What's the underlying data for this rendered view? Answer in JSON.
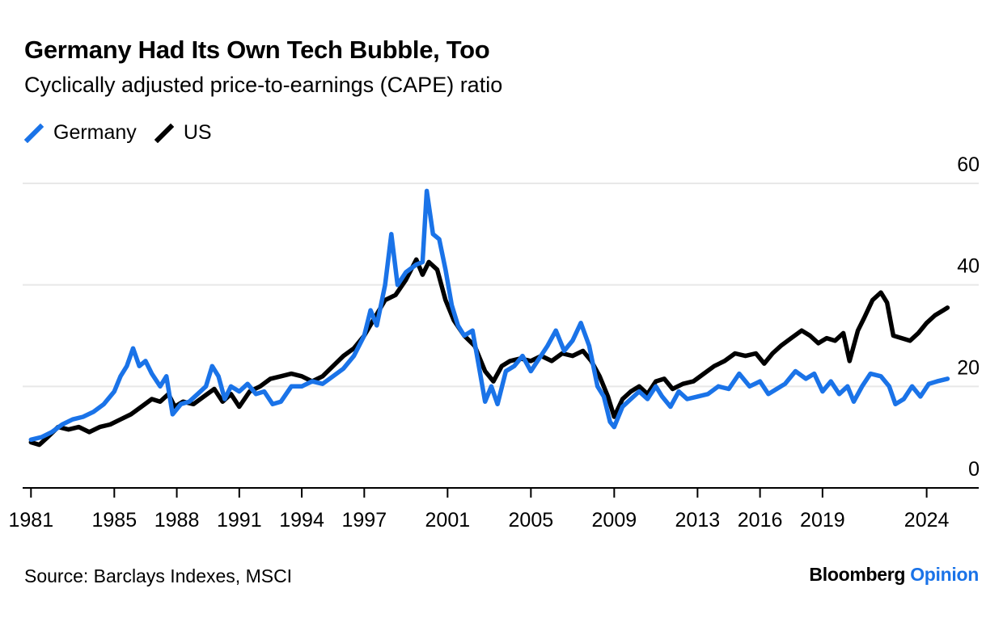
{
  "title": "Germany Had Its Own Tech Bubble, Too",
  "subtitle": "Cyclically adjusted price-to-earnings (CAPE) ratio",
  "source": "Source: Barclays Indexes, MSCI",
  "brand": {
    "name": "Bloomberg",
    "suffix": "Opinion",
    "suffix_color": "#1a73e8"
  },
  "colors": {
    "germany": "#1a73e8",
    "us": "#000000",
    "grid": "#e8e8e8",
    "axis": "#000000"
  },
  "chart_data": {
    "type": "line",
    "xlim": [
      1980.6,
      2026.5
    ],
    "ylim": [
      0,
      60
    ],
    "y_ticks": [
      0,
      20,
      40,
      60
    ],
    "x_ticks": [
      1981,
      1985,
      1988,
      1991,
      1994,
      1997,
      2001,
      2005,
      2009,
      2013,
      2016,
      2019,
      2024
    ],
    "x_tick_labels": [
      "1981",
      "1985",
      "1988",
      "1991",
      "1994",
      "1997",
      "2001",
      "2005",
      "2009",
      "2013",
      "2016",
      "2019",
      "2024"
    ],
    "y_axis_position": "right",
    "grid": "horizontal",
    "legend": "top-left",
    "series": [
      {
        "key": "germany",
        "name": "Germany",
        "color": "#1a73e8",
        "points": [
          [
            1981.0,
            9.5
          ],
          [
            1981.5,
            10.0
          ],
          [
            1982.0,
            11.0
          ],
          [
            1982.5,
            12.5
          ],
          [
            1983.0,
            13.5
          ],
          [
            1983.5,
            14.0
          ],
          [
            1984.0,
            15.0
          ],
          [
            1984.5,
            16.5
          ],
          [
            1985.0,
            19.0
          ],
          [
            1985.3,
            22.0
          ],
          [
            1985.6,
            24.0
          ],
          [
            1985.9,
            27.5
          ],
          [
            1986.2,
            24.0
          ],
          [
            1986.5,
            25.0
          ],
          [
            1986.8,
            22.5
          ],
          [
            1987.2,
            20.0
          ],
          [
            1987.5,
            22.0
          ],
          [
            1987.8,
            14.5
          ],
          [
            1988.2,
            16.5
          ],
          [
            1988.6,
            17.0
          ],
          [
            1989.0,
            18.5
          ],
          [
            1989.4,
            20.0
          ],
          [
            1989.7,
            24.0
          ],
          [
            1990.0,
            22.0
          ],
          [
            1990.3,
            17.5
          ],
          [
            1990.6,
            20.0
          ],
          [
            1991.0,
            19.0
          ],
          [
            1991.4,
            20.5
          ],
          [
            1991.8,
            18.5
          ],
          [
            1992.2,
            19.0
          ],
          [
            1992.6,
            16.5
          ],
          [
            1993.0,
            17.0
          ],
          [
            1993.5,
            20.0
          ],
          [
            1994.0,
            20.0
          ],
          [
            1994.5,
            21.0
          ],
          [
            1995.0,
            20.5
          ],
          [
            1995.5,
            22.0
          ],
          [
            1996.0,
            23.5
          ],
          [
            1996.5,
            26.0
          ],
          [
            1997.0,
            30.0
          ],
          [
            1997.3,
            35.0
          ],
          [
            1997.6,
            32.0
          ],
          [
            1998.0,
            40.0
          ],
          [
            1998.3,
            50.0
          ],
          [
            1998.6,
            40.0
          ],
          [
            1999.0,
            42.5
          ],
          [
            1999.5,
            44.0
          ],
          [
            1999.8,
            44.5
          ],
          [
            2000.0,
            58.5
          ],
          [
            2000.3,
            50.0
          ],
          [
            2000.6,
            49.0
          ],
          [
            2000.9,
            43.0
          ],
          [
            2001.2,
            36.0
          ],
          [
            2001.5,
            32.0
          ],
          [
            2001.8,
            30.0
          ],
          [
            2002.2,
            31.0
          ],
          [
            2002.5,
            24.0
          ],
          [
            2002.8,
            17.0
          ],
          [
            2003.1,
            20.0
          ],
          [
            2003.4,
            16.5
          ],
          [
            2003.8,
            23.0
          ],
          [
            2004.2,
            24.0
          ],
          [
            2004.6,
            26.0
          ],
          [
            2005.0,
            23.0
          ],
          [
            2005.4,
            25.5
          ],
          [
            2005.8,
            28.0
          ],
          [
            2006.2,
            31.0
          ],
          [
            2006.6,
            27.0
          ],
          [
            2007.0,
            29.0
          ],
          [
            2007.4,
            32.5
          ],
          [
            2007.8,
            28.0
          ],
          [
            2008.2,
            20.0
          ],
          [
            2008.5,
            18.0
          ],
          [
            2008.8,
            13.0
          ],
          [
            2009.0,
            12.0
          ],
          [
            2009.4,
            16.0
          ],
          [
            2009.8,
            17.5
          ],
          [
            2010.2,
            19.0
          ],
          [
            2010.6,
            17.5
          ],
          [
            2011.0,
            20.0
          ],
          [
            2011.3,
            18.0
          ],
          [
            2011.7,
            16.0
          ],
          [
            2012.1,
            19.0
          ],
          [
            2012.5,
            17.5
          ],
          [
            2013.0,
            18.0
          ],
          [
            2013.5,
            18.5
          ],
          [
            2014.0,
            20.0
          ],
          [
            2014.5,
            19.5
          ],
          [
            2015.0,
            22.5
          ],
          [
            2015.5,
            20.0
          ],
          [
            2016.0,
            21.0
          ],
          [
            2016.4,
            18.5
          ],
          [
            2016.8,
            19.5
          ],
          [
            2017.2,
            20.5
          ],
          [
            2017.7,
            23.0
          ],
          [
            2018.2,
            21.5
          ],
          [
            2018.6,
            22.5
          ],
          [
            2019.0,
            19.0
          ],
          [
            2019.4,
            21.0
          ],
          [
            2019.8,
            18.5
          ],
          [
            2020.2,
            20.0
          ],
          [
            2020.5,
            17.0
          ],
          [
            2020.9,
            20.0
          ],
          [
            2021.3,
            22.5
          ],
          [
            2021.8,
            22.0
          ],
          [
            2022.2,
            20.0
          ],
          [
            2022.5,
            16.5
          ],
          [
            2022.9,
            17.5
          ],
          [
            2023.3,
            20.0
          ],
          [
            2023.7,
            18.0
          ],
          [
            2024.1,
            20.5
          ],
          [
            2024.5,
            21.0
          ],
          [
            2025.0,
            21.5
          ]
        ]
      },
      {
        "key": "us",
        "name": "US",
        "color": "#000000",
        "points": [
          [
            1981.0,
            9.0
          ],
          [
            1981.4,
            8.5
          ],
          [
            1981.8,
            10.0
          ],
          [
            1982.3,
            12.0
          ],
          [
            1982.8,
            11.5
          ],
          [
            1983.3,
            12.0
          ],
          [
            1983.8,
            11.0
          ],
          [
            1984.3,
            12.0
          ],
          [
            1984.8,
            12.5
          ],
          [
            1985.3,
            13.5
          ],
          [
            1985.8,
            14.5
          ],
          [
            1986.3,
            16.0
          ],
          [
            1986.8,
            17.5
          ],
          [
            1987.2,
            17.0
          ],
          [
            1987.6,
            18.5
          ],
          [
            1987.9,
            16.0
          ],
          [
            1988.3,
            17.0
          ],
          [
            1988.8,
            16.5
          ],
          [
            1989.3,
            18.0
          ],
          [
            1989.8,
            19.5
          ],
          [
            1990.2,
            17.0
          ],
          [
            1990.6,
            18.5
          ],
          [
            1991.0,
            16.0
          ],
          [
            1991.5,
            19.0
          ],
          [
            1992.0,
            20.0
          ],
          [
            1992.5,
            21.5
          ],
          [
            1993.0,
            22.0
          ],
          [
            1993.5,
            22.5
          ],
          [
            1994.0,
            22.0
          ],
          [
            1994.5,
            21.0
          ],
          [
            1995.0,
            22.0
          ],
          [
            1995.5,
            24.0
          ],
          [
            1996.0,
            26.0
          ],
          [
            1996.5,
            27.5
          ],
          [
            1997.0,
            30.0
          ],
          [
            1997.5,
            33.5
          ],
          [
            1998.0,
            37.0
          ],
          [
            1998.5,
            38.0
          ],
          [
            1999.0,
            41.0
          ],
          [
            1999.5,
            45.0
          ],
          [
            1999.8,
            42.0
          ],
          [
            2000.1,
            44.5
          ],
          [
            2000.5,
            43.0
          ],
          [
            2000.9,
            37.0
          ],
          [
            2001.3,
            33.0
          ],
          [
            2001.8,
            30.0
          ],
          [
            2002.3,
            28.0
          ],
          [
            2002.8,
            23.0
          ],
          [
            2003.2,
            21.0
          ],
          [
            2003.6,
            24.0
          ],
          [
            2004.0,
            25.0
          ],
          [
            2004.5,
            25.5
          ],
          [
            2005.0,
            25.0
          ],
          [
            2005.5,
            26.0
          ],
          [
            2006.0,
            25.0
          ],
          [
            2006.5,
            26.5
          ],
          [
            2007.0,
            26.0
          ],
          [
            2007.5,
            27.0
          ],
          [
            2007.9,
            25.0
          ],
          [
            2008.3,
            22.0
          ],
          [
            2008.7,
            18.0
          ],
          [
            2009.0,
            14.0
          ],
          [
            2009.4,
            17.5
          ],
          [
            2009.8,
            19.0
          ],
          [
            2010.2,
            20.0
          ],
          [
            2010.6,
            18.5
          ],
          [
            2011.0,
            21.0
          ],
          [
            2011.4,
            21.5
          ],
          [
            2011.8,
            19.5
          ],
          [
            2012.3,
            20.5
          ],
          [
            2012.8,
            21.0
          ],
          [
            2013.3,
            22.5
          ],
          [
            2013.8,
            24.0
          ],
          [
            2014.3,
            25.0
          ],
          [
            2014.8,
            26.5
          ],
          [
            2015.3,
            26.0
          ],
          [
            2015.8,
            26.5
          ],
          [
            2016.2,
            24.5
          ],
          [
            2016.6,
            26.5
          ],
          [
            2017.0,
            28.0
          ],
          [
            2017.5,
            29.5
          ],
          [
            2018.0,
            31.0
          ],
          [
            2018.4,
            30.0
          ],
          [
            2018.8,
            28.5
          ],
          [
            2019.2,
            29.5
          ],
          [
            2019.6,
            29.0
          ],
          [
            2020.0,
            30.5
          ],
          [
            2020.3,
            25.0
          ],
          [
            2020.7,
            31.0
          ],
          [
            2021.0,
            33.5
          ],
          [
            2021.4,
            37.0
          ],
          [
            2021.8,
            38.5
          ],
          [
            2022.1,
            36.5
          ],
          [
            2022.4,
            30.0
          ],
          [
            2022.8,
            29.5
          ],
          [
            2023.2,
            29.0
          ],
          [
            2023.6,
            30.5
          ],
          [
            2024.0,
            32.5
          ],
          [
            2024.4,
            34.0
          ],
          [
            2024.8,
            35.0
          ],
          [
            2025.0,
            35.5
          ]
        ]
      }
    ]
  }
}
